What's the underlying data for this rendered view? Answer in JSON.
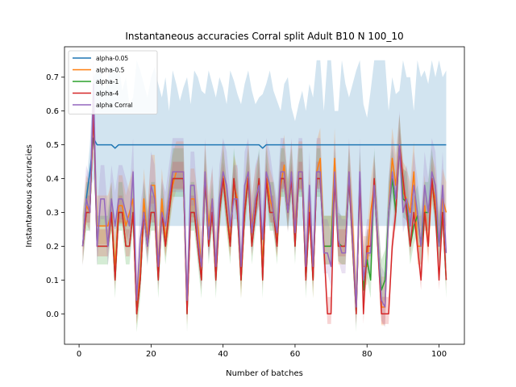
{
  "chart_data": {
    "type": "line",
    "title": "Instantaneous accuracies Corral split Adult B10 N 100_10",
    "xlabel": "Number of batches",
    "ylabel": "Instantaneous accuracies",
    "xlim": [
      -4.05,
      107.05
    ],
    "ylim": [
      -0.09,
      0.79
    ],
    "xticks": [
      0,
      20,
      40,
      60,
      80,
      100
    ],
    "yticks": [
      0.0,
      0.1,
      0.2,
      0.3,
      0.4,
      0.5,
      0.6,
      0.7
    ],
    "grid": false,
    "legend_position": "top-left",
    "x": [
      1,
      2,
      3,
      4,
      5,
      6,
      7,
      8,
      9,
      10,
      11,
      12,
      13,
      14,
      15,
      16,
      17,
      18,
      19,
      20,
      21,
      22,
      23,
      24,
      25,
      26,
      27,
      28,
      29,
      30,
      31,
      32,
      33,
      34,
      35,
      36,
      37,
      38,
      39,
      40,
      41,
      42,
      43,
      44,
      45,
      46,
      47,
      48,
      49,
      50,
      51,
      52,
      53,
      54,
      55,
      56,
      57,
      58,
      59,
      60,
      61,
      62,
      63,
      64,
      65,
      66,
      67,
      68,
      69,
      70,
      71,
      72,
      73,
      74,
      75,
      76,
      77,
      78,
      79,
      80,
      81,
      82,
      83,
      84,
      85,
      86,
      87,
      88,
      89,
      90,
      91,
      92,
      93,
      94,
      95,
      96,
      97,
      98,
      99,
      100,
      101,
      102
    ],
    "series": [
      {
        "name": "alpha-0.05",
        "color": "#1f77b4",
        "values": [
          0.2,
          0.34,
          0.42,
          0.52,
          0.5,
          0.5,
          0.5,
          0.5,
          0.5,
          0.49,
          0.5,
          0.5,
          0.5,
          0.5,
          0.5,
          0.5,
          0.5,
          0.5,
          0.5,
          0.5,
          0.5,
          0.5,
          0.5,
          0.5,
          0.5,
          0.5,
          0.5,
          0.5,
          0.5,
          0.5,
          0.5,
          0.5,
          0.5,
          0.5,
          0.5,
          0.5,
          0.5,
          0.5,
          0.5,
          0.5,
          0.5,
          0.5,
          0.5,
          0.5,
          0.5,
          0.5,
          0.5,
          0.5,
          0.5,
          0.5,
          0.49,
          0.5,
          0.5,
          0.5,
          0.5,
          0.5,
          0.5,
          0.5,
          0.5,
          0.5,
          0.5,
          0.5,
          0.5,
          0.5,
          0.5,
          0.5,
          0.5,
          0.5,
          0.5,
          0.5,
          0.5,
          0.5,
          0.5,
          0.5,
          0.5,
          0.5,
          0.5,
          0.5,
          0.5,
          0.5,
          0.5,
          0.5,
          0.5,
          0.5,
          0.5,
          0.5,
          0.5,
          0.5,
          0.5,
          0.5,
          0.5,
          0.5,
          0.5,
          0.5,
          0.5,
          0.5,
          0.5,
          0.5,
          0.5,
          0.5,
          0.5,
          0.5
        ],
        "lower": [
          0.2,
          0.3,
          0.36,
          0.4,
          0.26,
          0.26,
          0.26,
          0.26,
          0.26,
          0.25,
          0.26,
          0.26,
          0.26,
          0.26,
          0.26,
          0.26,
          0.26,
          0.26,
          0.26,
          0.26,
          0.26,
          0.26,
          0.26,
          0.26,
          0.26,
          0.26,
          0.26,
          0.26,
          0.26,
          0.26,
          0.26,
          0.26,
          0.26,
          0.26,
          0.26,
          0.26,
          0.26,
          0.26,
          0.26,
          0.26,
          0.26,
          0.26,
          0.26,
          0.26,
          0.26,
          0.26,
          0.26,
          0.26,
          0.26,
          0.26,
          0.25,
          0.26,
          0.26,
          0.26,
          0.26,
          0.26,
          0.26,
          0.26,
          0.26,
          0.26,
          0.26,
          0.26,
          0.26,
          0.26,
          0.26,
          0.26,
          0.26,
          0.26,
          0.26,
          0.26,
          0.26,
          0.26,
          0.26,
          0.26,
          0.26,
          0.26,
          0.26,
          0.26,
          0.26,
          0.26,
          0.26,
          0.26,
          0.26,
          0.26,
          0.26,
          0.26,
          0.26,
          0.26,
          0.26,
          0.26,
          0.26,
          0.26,
          0.26,
          0.26,
          0.26,
          0.26,
          0.26,
          0.26,
          0.26,
          0.26,
          0.26,
          0.26
        ],
        "upper": [
          0.2,
          0.38,
          0.5,
          0.7,
          0.72,
          0.72,
          0.66,
          0.7,
          0.74,
          0.72,
          0.74,
          0.66,
          0.7,
          0.62,
          0.64,
          0.75,
          0.72,
          0.68,
          0.64,
          0.7,
          0.73,
          0.68,
          0.64,
          0.7,
          0.6,
          0.72,
          0.68,
          0.63,
          0.67,
          0.7,
          0.62,
          0.72,
          0.7,
          0.66,
          0.65,
          0.72,
          0.68,
          0.64,
          0.7,
          0.67,
          0.62,
          0.72,
          0.69,
          0.65,
          0.62,
          0.68,
          0.72,
          0.66,
          0.62,
          0.64,
          0.65,
          0.68,
          0.72,
          0.66,
          0.63,
          0.6,
          0.68,
          0.7,
          0.61,
          0.57,
          0.62,
          0.66,
          0.6,
          0.68,
          0.64,
          0.75,
          0.75,
          0.6,
          0.75,
          0.75,
          0.6,
          0.6,
          0.75,
          0.68,
          0.64,
          0.68,
          0.72,
          0.75,
          0.62,
          0.58,
          0.66,
          0.75,
          0.75,
          0.75,
          0.75,
          0.6,
          0.7,
          0.65,
          0.66,
          0.75,
          0.7,
          0.7,
          0.6,
          0.75,
          0.7,
          0.72,
          0.68,
          0.75,
          0.7,
          0.75,
          0.7,
          0.72
        ]
      },
      {
        "name": "alpha-0.5",
        "color": "#ff7f0e",
        "values": [
          0.2,
          0.32,
          0.3,
          0.6,
          0.26,
          0.26,
          0.26,
          0.26,
          0.3,
          0.14,
          0.32,
          0.32,
          0.26,
          0.3,
          0.34,
          0.02,
          0.12,
          0.34,
          0.22,
          0.38,
          0.38,
          0.14,
          0.34,
          0.22,
          0.3,
          0.38,
          0.42,
          0.42,
          0.42,
          0.02,
          0.34,
          0.34,
          0.26,
          0.14,
          0.42,
          0.26,
          0.34,
          0.14,
          0.3,
          0.42,
          0.3,
          0.22,
          0.38,
          0.34,
          0.1,
          0.3,
          0.42,
          0.26,
          0.34,
          0.38,
          0.14,
          0.42,
          0.34,
          0.3,
          0.22,
          0.38,
          0.44,
          0.3,
          0.42,
          0.26,
          0.42,
          0.42,
          0.14,
          0.34,
          0.1,
          0.42,
          0.46,
          0.2,
          0.2,
          0.2,
          0.46,
          0.2,
          0.2,
          0.2,
          0.42,
          0.26,
          0.02,
          0.38,
          0.14,
          0.14,
          0.3,
          0.38,
          0.22,
          0.02,
          0.02,
          0.3,
          0.46,
          0.38,
          0.5,
          0.36,
          0.34,
          0.3,
          0.42,
          0.2,
          0.2,
          0.32,
          0.2,
          0.38,
          0.34,
          0.2,
          0.34,
          0.3
        ]
      },
      {
        "name": "alpha-1",
        "color": "#2ca02c",
        "values": [
          0.2,
          0.3,
          0.3,
          0.6,
          0.2,
          0.2,
          0.2,
          0.2,
          0.3,
          0.1,
          0.3,
          0.3,
          0.2,
          0.2,
          0.3,
          0.0,
          0.1,
          0.3,
          0.2,
          0.3,
          0.3,
          0.1,
          0.3,
          0.2,
          0.3,
          0.4,
          0.4,
          0.4,
          0.4,
          0.0,
          0.3,
          0.3,
          0.2,
          0.1,
          0.4,
          0.2,
          0.3,
          0.1,
          0.3,
          0.4,
          0.3,
          0.2,
          0.4,
          0.3,
          0.1,
          0.3,
          0.4,
          0.2,
          0.3,
          0.4,
          0.1,
          0.4,
          0.3,
          0.3,
          0.2,
          0.4,
          0.4,
          0.3,
          0.4,
          0.2,
          0.4,
          0.4,
          0.1,
          0.3,
          0.1,
          0.4,
          0.4,
          0.2,
          0.2,
          0.2,
          0.4,
          0.21,
          0.2,
          0.2,
          0.4,
          0.2,
          0.0,
          0.4,
          0.07,
          0.16,
          0.1,
          0.4,
          0.2,
          0.07,
          0.1,
          0.3,
          0.4,
          0.3,
          0.5,
          0.34,
          0.33,
          0.2,
          0.26,
          0.29,
          0.2,
          0.3,
          0.3,
          0.4,
          0.3,
          0.2,
          0.3,
          0.1
        ]
      },
      {
        "name": "alpha-4",
        "color": "#d62728",
        "values": [
          0.2,
          0.3,
          0.3,
          0.6,
          0.2,
          0.2,
          0.2,
          0.2,
          0.3,
          0.1,
          0.3,
          0.3,
          0.2,
          0.2,
          0.3,
          0.0,
          0.1,
          0.3,
          0.2,
          0.3,
          0.3,
          0.1,
          0.3,
          0.2,
          0.3,
          0.4,
          0.4,
          0.4,
          0.4,
          0.0,
          0.3,
          0.3,
          0.2,
          0.1,
          0.4,
          0.2,
          0.3,
          0.1,
          0.3,
          0.4,
          0.3,
          0.2,
          0.4,
          0.3,
          0.1,
          0.3,
          0.4,
          0.2,
          0.3,
          0.4,
          0.1,
          0.4,
          0.3,
          0.3,
          0.2,
          0.4,
          0.4,
          0.3,
          0.4,
          0.2,
          0.4,
          0.4,
          0.1,
          0.3,
          0.1,
          0.4,
          0.4,
          0.2,
          0.0,
          0.0,
          0.4,
          0.2,
          0.2,
          0.2,
          0.4,
          0.2,
          0.0,
          0.4,
          0.0,
          0.2,
          0.2,
          0.4,
          0.2,
          0.0,
          0.0,
          0.0,
          0.2,
          0.3,
          0.5,
          0.4,
          0.3,
          0.2,
          0.3,
          0.2,
          0.1,
          0.3,
          0.2,
          0.4,
          0.3,
          0.1,
          0.3,
          0.1
        ]
      },
      {
        "name": "alpha Corral",
        "color": "#9467bd",
        "values": [
          0.2,
          0.34,
          0.3,
          0.68,
          0.2,
          0.34,
          0.34,
          0.2,
          0.34,
          0.26,
          0.34,
          0.34,
          0.3,
          0.26,
          0.42,
          0.04,
          0.22,
          0.3,
          0.2,
          0.38,
          0.34,
          0.14,
          0.3,
          0.26,
          0.34,
          0.42,
          0.42,
          0.42,
          0.42,
          0.04,
          0.38,
          0.38,
          0.22,
          0.14,
          0.42,
          0.22,
          0.34,
          0.14,
          0.34,
          0.42,
          0.38,
          0.26,
          0.34,
          0.34,
          0.14,
          0.38,
          0.42,
          0.24,
          0.34,
          0.38,
          0.22,
          0.42,
          0.38,
          0.3,
          0.24,
          0.42,
          0.42,
          0.3,
          0.42,
          0.24,
          0.42,
          0.42,
          0.14,
          0.38,
          0.14,
          0.42,
          0.42,
          0.18,
          0.18,
          0.14,
          0.42,
          0.22,
          0.18,
          0.18,
          0.42,
          0.22,
          0.02,
          0.42,
          0.1,
          0.18,
          0.18,
          0.38,
          0.22,
          0.04,
          0.02,
          0.3,
          0.42,
          0.34,
          0.5,
          0.3,
          0.34,
          0.26,
          0.38,
          0.3,
          0.2,
          0.38,
          0.3,
          0.42,
          0.38,
          0.2,
          0.38,
          0.18
        ]
      }
    ]
  }
}
